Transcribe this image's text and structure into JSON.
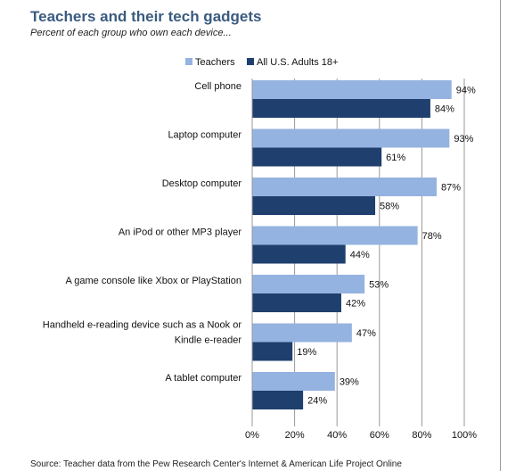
{
  "header": {
    "title": "Teachers and their tech gadgets",
    "subtitle": "Percent of each group who own each device..."
  },
  "footer": {
    "source": "Source: Teacher data from the Pew Research Center's Internet & American Life Project Online"
  },
  "colors": {
    "teachers": "#95b3e0",
    "adults": "#1f3f6e",
    "grid": "#999999"
  },
  "chart_data": {
    "type": "bar",
    "orientation": "horizontal",
    "categories": [
      "Cell phone",
      "Laptop computer",
      "Desktop computer",
      "An iPod or other MP3 player",
      "A game console like Xbox or PlayStation",
      "Handheld e-reading device such as a Nook or Kindle e-reader",
      "A tablet computer"
    ],
    "category_lines": [
      [
        "Cell phone"
      ],
      [
        "Laptop computer"
      ],
      [
        "Desktop computer"
      ],
      [
        "An iPod or other MP3 player"
      ],
      [
        "A game console like Xbox or PlayStation"
      ],
      [
        "Handheld e-reading device such as a Nook or",
        "Kindle e-reader"
      ],
      [
        "A tablet computer"
      ]
    ],
    "series": [
      {
        "name": "Teachers",
        "values": [
          94,
          93,
          87,
          78,
          53,
          47,
          39
        ]
      },
      {
        "name": "All U.S. Adults 18+",
        "values": [
          84,
          61,
          58,
          44,
          42,
          19,
          24
        ]
      }
    ],
    "xlim": [
      0,
      100
    ],
    "xticks": [
      0,
      20,
      40,
      60,
      80,
      100
    ],
    "tick_suffix": "%",
    "value_suffix": "%",
    "grid": true,
    "legend_position": "top-left"
  }
}
